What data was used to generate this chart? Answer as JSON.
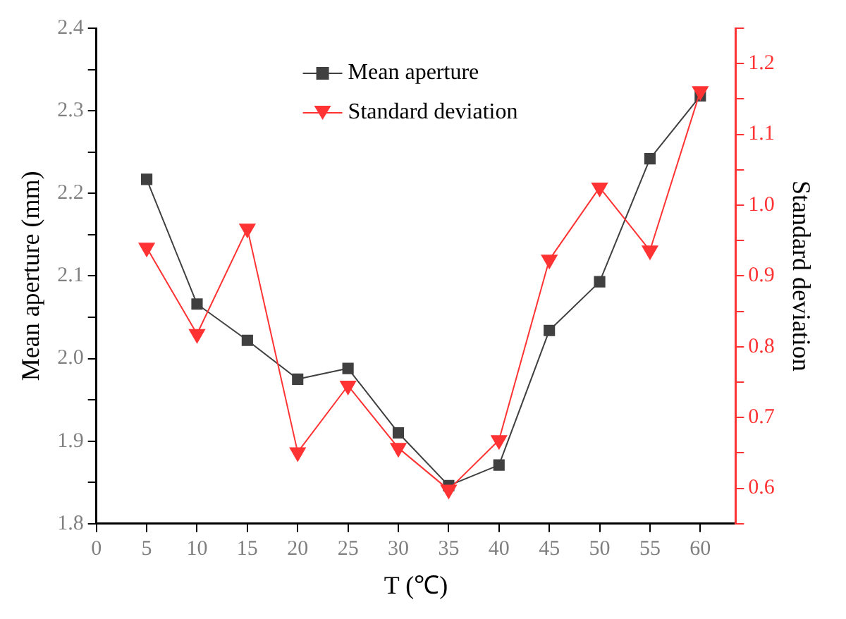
{
  "chart_data": {
    "type": "line",
    "xlabel": "T (℃)",
    "ylabel": "Mean aperture (mm)",
    "y2label": "Standard deviation",
    "x": [
      5,
      10,
      15,
      20,
      25,
      30,
      35,
      40,
      45,
      50,
      55,
      60
    ],
    "series": [
      {
        "name": "Mean aperture",
        "color": "#404040",
        "marker": "square",
        "values": [
          2.217,
          2.066,
          2.022,
          1.975,
          1.988,
          1.91,
          1.846,
          1.871,
          2.034,
          2.093,
          2.242,
          2.318
        ]
      },
      {
        "name": "Standard deviation",
        "color": "#ff3333",
        "marker": "triangle",
        "axis": "y2",
        "values": [
          0.94,
          0.818,
          0.967,
          0.651,
          0.745,
          0.657,
          0.598,
          0.668,
          0.923,
          1.025,
          0.936,
          1.161
        ]
      }
    ],
    "xlim": [
      0,
      63.5
    ],
    "xticks": [
      0,
      5,
      10,
      15,
      20,
      25,
      30,
      35,
      40,
      45,
      50,
      55,
      60
    ],
    "ylim": [
      1.8,
      2.4
    ],
    "yticks": [
      1.8,
      {
        "value": 1.85,
        "label": null
      },
      1.9,
      {
        "value": 1.95,
        "label": null
      },
      {
        "value": 2,
        "label": "2.0"
      },
      {
        "value": 2.05,
        "label": null
      },
      2.1,
      {
        "value": 2.15,
        "label": null
      },
      2.2,
      {
        "value": 2.25,
        "label": null
      },
      2.3,
      {
        "value": 2.35,
        "label": null
      },
      2.4
    ],
    "y2lim": [
      0.55,
      1.25
    ],
    "y2ticks": [
      {
        "value": 0.55,
        "label": null
      },
      0.6,
      {
        "value": 0.65,
        "label": null
      },
      0.7,
      {
        "value": 0.75,
        "label": null
      },
      0.8,
      {
        "value": 0.85,
        "label": null
      },
      0.9,
      {
        "value": 0.95,
        "label": null
      },
      {
        "value": 1,
        "label": "1.0"
      },
      {
        "value": 1.05,
        "label": null
      },
      1.1,
      {
        "value": 1.15,
        "label": null
      },
      1.2,
      {
        "value": 1.25,
        "label": null
      }
    ],
    "legend": "top",
    "line_style": "solid"
  }
}
